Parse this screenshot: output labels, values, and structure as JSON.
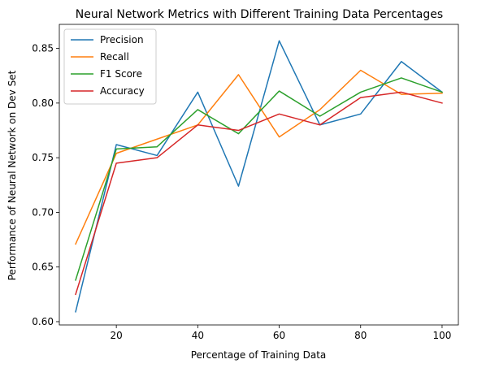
{
  "chart_data": {
    "type": "line",
    "title": "Neural Network Metrics with Different Training Data Percentages",
    "xlabel": "Percentage of Training Data",
    "ylabel": "Performance of Neural Network on Dev Set",
    "xlim": [
      6,
      104
    ],
    "ylim": [
      0.597,
      0.872
    ],
    "xticks": [
      20,
      40,
      60,
      80,
      100
    ],
    "xtick_labels": [
      "20",
      "40",
      "60",
      "80",
      "100"
    ],
    "yticks": [
      0.6,
      0.65,
      0.7,
      0.75,
      0.8,
      0.85
    ],
    "ytick_labels": [
      "0.60",
      "0.65",
      "0.70",
      "0.75",
      "0.80",
      "0.85"
    ],
    "grid": false,
    "legend_position": "upper-left",
    "x": [
      10,
      20,
      30,
      40,
      50,
      60,
      70,
      80,
      90,
      100
    ],
    "series": [
      {
        "name": "Precision",
        "color": "#1f77b4",
        "values": [
          0.609,
          0.762,
          0.752,
          0.81,
          0.724,
          0.857,
          0.78,
          0.79,
          0.838,
          0.81
        ]
      },
      {
        "name": "Recall",
        "color": "#ff7f0e",
        "values": [
          0.671,
          0.754,
          0.767,
          0.78,
          0.826,
          0.769,
          0.794,
          0.83,
          0.808,
          0.809
        ]
      },
      {
        "name": "F1 Score",
        "color": "#2ca02c",
        "values": [
          0.638,
          0.758,
          0.76,
          0.794,
          0.772,
          0.811,
          0.788,
          0.81,
          0.823,
          0.81
        ]
      },
      {
        "name": "Accuracy",
        "color": "#d62728",
        "values": [
          0.625,
          0.745,
          0.75,
          0.78,
          0.775,
          0.79,
          0.78,
          0.805,
          0.81,
          0.8
        ]
      }
    ]
  }
}
